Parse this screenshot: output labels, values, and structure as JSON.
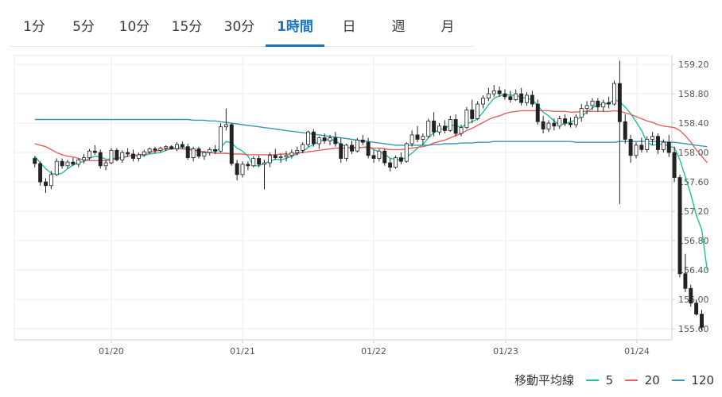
{
  "tabs": [
    {
      "label": "1分",
      "active": false
    },
    {
      "label": "5分",
      "active": false
    },
    {
      "label": "10分",
      "active": false
    },
    {
      "label": "15分",
      "active": false
    },
    {
      "label": "30分",
      "active": false
    },
    {
      "label": "1時間",
      "active": true
    },
    {
      "label": "日",
      "active": false
    },
    {
      "label": "週",
      "active": false
    },
    {
      "label": "月",
      "active": false
    }
  ],
  "legend": {
    "title": "移動平均線",
    "items": [
      {
        "label": "5",
        "color": "#1fbf9f"
      },
      {
        "label": "20",
        "color": "#e8605e"
      },
      {
        "label": "120",
        "color": "#3a96b8"
      }
    ]
  },
  "chart_data": {
    "type": "candlestick",
    "x_tick_labels": [
      "01/20",
      "01/21",
      "01/22",
      "01/23",
      "01/24"
    ],
    "y_ticks": [
      155.6,
      156.0,
      156.4,
      156.8,
      157.2,
      157.6,
      158.0,
      158.4,
      158.8,
      159.2
    ],
    "y_tick_labels": [
      "155.60",
      "156.00",
      "156.40",
      "156.80",
      "157.20",
      "157.60",
      "158.00",
      "158.40",
      "158.80",
      "159.20"
    ],
    "ylim": [
      155.45,
      159.32
    ],
    "grid": true,
    "candles_per_day": 24,
    "first_candle_offset": -14,
    "ohlc": [
      [
        157.92,
        157.95,
        157.8,
        157.85
      ],
      [
        157.85,
        157.88,
        157.55,
        157.6
      ],
      [
        157.6,
        157.65,
        157.45,
        157.55
      ],
      [
        157.55,
        157.75,
        157.5,
        157.7
      ],
      [
        157.7,
        157.92,
        157.68,
        157.88
      ],
      [
        157.88,
        157.92,
        157.78,
        157.82
      ],
      [
        157.82,
        157.9,
        157.78,
        157.87
      ],
      [
        157.87,
        157.93,
        157.82,
        157.84
      ],
      [
        157.84,
        157.92,
        157.8,
        157.9
      ],
      [
        157.9,
        157.98,
        157.85,
        157.93
      ],
      [
        157.93,
        158.05,
        157.9,
        158.02
      ],
      [
        158.02,
        158.1,
        157.97,
        158.0
      ],
      [
        158.0,
        158.04,
        157.78,
        157.82
      ],
      [
        157.82,
        157.9,
        157.76,
        157.86
      ],
      [
        157.86,
        158.06,
        157.84,
        158.03
      ],
      [
        158.03,
        158.06,
        157.88,
        157.9
      ],
      [
        157.9,
        158.03,
        157.86,
        158.0
      ],
      [
        158.0,
        158.06,
        157.94,
        157.98
      ],
      [
        157.98,
        158.04,
        157.88,
        157.92
      ],
      [
        157.92,
        158.0,
        157.88,
        157.97
      ],
      [
        157.97,
        158.04,
        157.94,
        158.01
      ],
      [
        158.01,
        158.07,
        157.98,
        158.05
      ],
      [
        158.05,
        158.08,
        157.99,
        158.03
      ],
      [
        158.03,
        158.08,
        158.0,
        158.06
      ],
      [
        158.06,
        158.1,
        158.02,
        158.08
      ],
      [
        158.08,
        158.1,
        158.04,
        158.05
      ],
      [
        158.05,
        158.14,
        158.02,
        158.11
      ],
      [
        158.11,
        158.15,
        158.05,
        158.08
      ],
      [
        158.08,
        158.12,
        157.9,
        157.93
      ],
      [
        157.93,
        158.08,
        157.88,
        158.05
      ],
      [
        158.05,
        158.08,
        157.92,
        157.95
      ],
      [
        157.95,
        158.02,
        157.9,
        158.0
      ],
      [
        158.0,
        158.07,
        157.96,
        158.04
      ],
      [
        158.04,
        158.1,
        157.98,
        158.02
      ],
      [
        158.02,
        158.4,
        158.0,
        158.35
      ],
      [
        158.35,
        158.6,
        158.3,
        158.38
      ],
      [
        158.38,
        158.4,
        157.82,
        157.85
      ],
      [
        157.85,
        157.9,
        157.62,
        157.7
      ],
      [
        157.7,
        157.88,
        157.66,
        157.84
      ],
      [
        157.84,
        157.88,
        157.76,
        157.82
      ],
      [
        157.82,
        157.95,
        157.8,
        157.92
      ],
      [
        157.92,
        157.96,
        157.8,
        157.84
      ],
      [
        157.84,
        157.9,
        157.5,
        157.86
      ],
      [
        157.86,
        158.0,
        157.8,
        157.96
      ],
      [
        157.96,
        158.05,
        157.9,
        157.93
      ],
      [
        157.93,
        157.98,
        157.86,
        157.94
      ],
      [
        157.94,
        158.02,
        157.88,
        157.96
      ],
      [
        157.96,
        158.04,
        157.92,
        158.0
      ],
      [
        158.0,
        158.08,
        157.96,
        158.03
      ],
      [
        158.03,
        158.14,
        157.99,
        158.11
      ],
      [
        158.11,
        158.3,
        158.08,
        158.28
      ],
      [
        158.28,
        158.32,
        158.08,
        158.12
      ],
      [
        158.12,
        158.22,
        158.05,
        158.2
      ],
      [
        158.2,
        158.26,
        158.12,
        158.16
      ],
      [
        158.16,
        158.24,
        158.1,
        158.2
      ],
      [
        158.2,
        158.28,
        158.08,
        158.12
      ],
      [
        158.12,
        158.2,
        157.86,
        157.92
      ],
      [
        157.92,
        158.12,
        157.88,
        158.1
      ],
      [
        158.1,
        158.16,
        157.98,
        158.02
      ],
      [
        158.02,
        158.2,
        158.0,
        158.17
      ],
      [
        158.17,
        158.24,
        158.1,
        158.14
      ],
      [
        158.14,
        158.2,
        157.92,
        157.96
      ],
      [
        157.96,
        158.04,
        157.86,
        157.92
      ],
      [
        157.92,
        158.05,
        157.88,
        158.02
      ],
      [
        158.02,
        158.05,
        157.82,
        157.86
      ],
      [
        157.86,
        157.92,
        157.74,
        157.8
      ],
      [
        157.8,
        157.96,
        157.78,
        157.93
      ],
      [
        157.93,
        158.0,
        157.84,
        157.88
      ],
      [
        157.88,
        158.14,
        157.86,
        158.12
      ],
      [
        158.12,
        158.3,
        158.08,
        158.24
      ],
      [
        158.24,
        158.36,
        158.14,
        158.18
      ],
      [
        158.18,
        158.26,
        158.1,
        158.22
      ],
      [
        158.22,
        158.46,
        158.2,
        158.43
      ],
      [
        158.43,
        158.55,
        158.22,
        158.28
      ],
      [
        158.28,
        158.4,
        158.24,
        158.36
      ],
      [
        158.36,
        158.44,
        158.26,
        158.3
      ],
      [
        158.3,
        158.5,
        158.28,
        158.45
      ],
      [
        158.45,
        158.52,
        158.22,
        158.26
      ],
      [
        158.26,
        158.38,
        158.22,
        158.34
      ],
      [
        158.34,
        158.62,
        158.32,
        158.58
      ],
      [
        158.58,
        158.72,
        158.4,
        158.46
      ],
      [
        158.46,
        158.7,
        158.44,
        158.66
      ],
      [
        158.66,
        158.78,
        158.6,
        158.74
      ],
      [
        158.74,
        158.88,
        158.7,
        158.8
      ],
      [
        158.8,
        158.92,
        158.76,
        158.84
      ],
      [
        158.84,
        158.9,
        158.76,
        158.8
      ],
      [
        158.8,
        158.86,
        158.72,
        158.76
      ],
      [
        158.76,
        158.84,
        158.68,
        158.72
      ],
      [
        158.72,
        158.86,
        158.7,
        158.8
      ],
      [
        158.8,
        158.88,
        158.64,
        158.68
      ],
      [
        158.68,
        158.82,
        158.64,
        158.78
      ],
      [
        158.78,
        158.84,
        158.62,
        158.66
      ],
      [
        158.66,
        158.72,
        158.38,
        158.42
      ],
      [
        158.42,
        158.5,
        158.26,
        158.32
      ],
      [
        158.32,
        158.44,
        158.28,
        158.4
      ],
      [
        158.4,
        158.46,
        158.3,
        158.36
      ],
      [
        158.36,
        158.5,
        158.32,
        158.46
      ],
      [
        158.46,
        158.52,
        158.36,
        158.4
      ],
      [
        158.4,
        158.48,
        158.34,
        158.38
      ],
      [
        158.38,
        158.52,
        158.34,
        158.48
      ],
      [
        158.48,
        158.66,
        158.42,
        158.6
      ],
      [
        158.6,
        158.7,
        158.52,
        158.64
      ],
      [
        158.64,
        158.74,
        158.58,
        158.7
      ],
      [
        158.7,
        158.74,
        158.56,
        158.62
      ],
      [
        158.62,
        158.72,
        158.56,
        158.68
      ],
      [
        158.68,
        158.76,
        158.6,
        158.66
      ],
      [
        158.66,
        158.98,
        158.64,
        158.94
      ],
      [
        158.94,
        159.25,
        157.3,
        158.42
      ],
      [
        158.42,
        158.52,
        158.12,
        158.18
      ],
      [
        158.18,
        158.24,
        157.86,
        157.96
      ],
      [
        157.96,
        158.14,
        157.92,
        158.1
      ],
      [
        158.1,
        158.2,
        158.0,
        158.04
      ],
      [
        158.04,
        158.22,
        158.0,
        158.18
      ],
      [
        158.18,
        158.28,
        158.1,
        158.22
      ],
      [
        158.22,
        158.26,
        157.98,
        158.04
      ],
      [
        158.04,
        158.18,
        158.0,
        158.14
      ],
      [
        158.14,
        158.24,
        157.94,
        158.0
      ],
      [
        158.0,
        158.08,
        157.6,
        157.66
      ],
      [
        157.66,
        157.7,
        156.3,
        156.35
      ],
      [
        156.35,
        156.62,
        156.1,
        156.15
      ],
      [
        156.15,
        156.2,
        155.9,
        155.95
      ],
      [
        155.95,
        156.0,
        155.78,
        155.8
      ],
      [
        155.8,
        155.86,
        155.58,
        155.62
      ]
    ],
    "ma": {
      "5": [
        157.95,
        157.86,
        157.78,
        157.72,
        157.7,
        157.72,
        157.78,
        157.83,
        157.86,
        157.88,
        157.92,
        157.95,
        157.94,
        157.91,
        157.91,
        157.93,
        157.92,
        157.95,
        157.96,
        157.95,
        157.96,
        157.98,
        157.99,
        158.0,
        158.03,
        158.05,
        158.07,
        158.07,
        158.06,
        158.04,
        158.02,
        157.99,
        158.0,
        158.0,
        158.07,
        158.15,
        158.13,
        158.06,
        158.02,
        157.95,
        157.82,
        157.82,
        157.85,
        157.88,
        157.91,
        157.9,
        157.92,
        157.95,
        157.98,
        158.01,
        158.07,
        158.11,
        158.15,
        158.17,
        158.18,
        158.16,
        158.11,
        158.08,
        158.06,
        158.06,
        158.07,
        158.08,
        158.04,
        158.01,
        157.98,
        157.92,
        157.91,
        157.9,
        157.94,
        157.99,
        158.06,
        158.11,
        158.2,
        158.27,
        158.31,
        158.33,
        158.37,
        158.37,
        158.34,
        158.39,
        158.42,
        158.46,
        158.55,
        158.65,
        158.74,
        158.77,
        158.79,
        158.78,
        158.78,
        158.75,
        158.74,
        158.72,
        158.64,
        158.55,
        158.5,
        158.43,
        158.38,
        158.39,
        158.42,
        158.44,
        158.49,
        158.55,
        158.61,
        158.65,
        158.66,
        158.67,
        158.72,
        158.69,
        158.62,
        158.53,
        158.42,
        158.3,
        158.14,
        158.1,
        158.11,
        158.12,
        158.08,
        158.07,
        157.9,
        157.67,
        157.43,
        157.15,
        156.95,
        156.4
      ],
      "20": [
        158.12,
        158.1,
        158.08,
        158.04,
        158.0,
        157.97,
        157.95,
        157.94,
        157.92,
        157.9,
        157.89,
        157.89,
        157.89,
        157.89,
        157.9,
        157.92,
        157.94,
        157.95,
        157.96,
        157.97,
        157.98,
        158.0,
        158.02,
        158.03,
        158.05,
        158.05,
        158.05,
        158.05,
        158.04,
        158.03,
        158.02,
        158.01,
        158.0,
        157.99,
        157.99,
        157.99,
        157.98,
        157.98,
        157.98,
        157.97,
        157.97,
        157.97,
        157.97,
        157.97,
        157.97,
        157.98,
        157.98,
        157.98,
        157.99,
        158.0,
        158.01,
        158.02,
        158.03,
        158.04,
        158.05,
        158.06,
        158.06,
        158.06,
        158.07,
        158.07,
        158.07,
        158.07,
        158.06,
        158.06,
        158.05,
        158.04,
        158.04,
        158.04,
        158.05,
        158.06,
        158.07,
        158.08,
        158.1,
        158.13,
        158.15,
        158.17,
        158.2,
        158.23,
        158.26,
        158.3,
        158.33,
        158.37,
        158.41,
        158.45,
        158.48,
        158.5,
        158.53,
        158.55,
        158.56,
        158.57,
        158.57,
        158.57,
        158.57,
        158.57,
        158.57,
        158.56,
        158.56,
        158.56,
        158.55,
        158.55,
        158.56,
        158.56,
        158.56,
        158.56,
        158.56,
        158.56,
        158.57,
        158.56,
        158.54,
        158.52,
        158.49,
        158.46,
        158.43,
        158.41,
        158.38,
        158.36,
        158.35,
        158.34,
        158.3,
        158.23,
        158.14,
        158.04,
        157.95,
        157.86
      ],
      "120": [
        158.45,
        158.45,
        158.45,
        158.45,
        158.45,
        158.45,
        158.45,
        158.45,
        158.45,
        158.45,
        158.45,
        158.45,
        158.45,
        158.45,
        158.45,
        158.45,
        158.45,
        158.45,
        158.45,
        158.45,
        158.45,
        158.45,
        158.45,
        158.45,
        158.45,
        158.45,
        158.45,
        158.45,
        158.45,
        158.44,
        158.44,
        158.44,
        158.43,
        158.43,
        158.42,
        158.41,
        158.4,
        158.39,
        158.38,
        158.37,
        158.36,
        158.35,
        158.34,
        158.33,
        158.32,
        158.31,
        158.3,
        158.29,
        158.28,
        158.27,
        158.26,
        158.25,
        158.24,
        158.23,
        158.22,
        158.21,
        158.2,
        158.19,
        158.18,
        158.17,
        158.16,
        158.15,
        158.14,
        158.13,
        158.12,
        158.11,
        158.1,
        158.1,
        158.1,
        158.1,
        158.1,
        158.1,
        158.1,
        158.11,
        158.11,
        158.12,
        158.12,
        158.12,
        158.13,
        158.13,
        158.13,
        158.14,
        158.14,
        158.14,
        158.15,
        158.15,
        158.15,
        158.15,
        158.15,
        158.15,
        158.15,
        158.15,
        158.15,
        158.15,
        158.15,
        158.15,
        158.15,
        158.15,
        158.15,
        158.14,
        158.14,
        158.14,
        158.14,
        158.14,
        158.14,
        158.14,
        158.14,
        158.15,
        158.15,
        158.15,
        158.15,
        158.15,
        158.15,
        158.15,
        158.15,
        158.15,
        158.14,
        158.14,
        158.13,
        158.12,
        158.11,
        158.1,
        158.09,
        158.08
      ]
    }
  }
}
